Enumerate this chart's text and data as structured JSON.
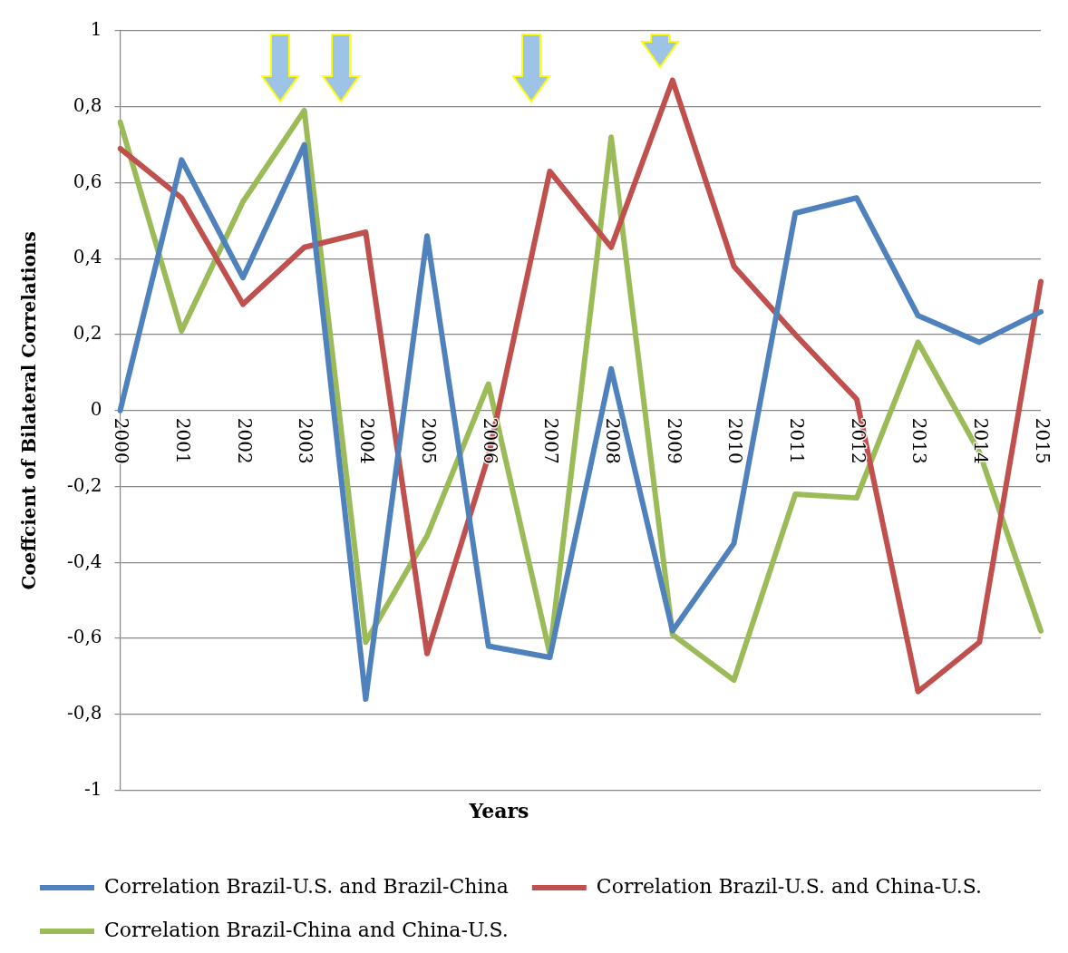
{
  "chart_data": {
    "type": "line",
    "xlabel": "Years",
    "ylabel": "Coeffcient of Bilateral Correlations",
    "categories": [
      "2000",
      "2001",
      "2002",
      "2003",
      "2004",
      "2005",
      "2006",
      "2007",
      "2008",
      "2009",
      "2010",
      "2011",
      "2012",
      "2013",
      "2014",
      "2015"
    ],
    "series": [
      {
        "name": "Correlation Brazil-U.S. and Brazil-China",
        "color": "#4f81bd",
        "values": [
          0,
          0.66,
          0.35,
          0.7,
          -0.76,
          0.46,
          -0.62,
          -0.65,
          0.11,
          -0.58,
          -0.35,
          0.52,
          0.56,
          0.25,
          0.18,
          0.26
        ]
      },
      {
        "name": "Correlation Brazil-U.S. and China-U.S.",
        "color": "#c0504d",
        "values": [
          0.69,
          0.56,
          0.28,
          0.43,
          0.47,
          -0.64,
          -0.12,
          0.63,
          0.43,
          0.87,
          0.38,
          0.2,
          0.03,
          -0.74,
          -0.61,
          0.34
        ]
      },
      {
        "name": "Correlation Brazil-China and China-U.S.",
        "color": "#9bbb59",
        "values": [
          0.76,
          0.21,
          0.55,
          0.79,
          -0.61,
          -0.33,
          0.07,
          -0.64,
          0.72,
          -0.59,
          -0.71,
          -0.22,
          -0.23,
          0.18,
          -0.11,
          -0.58
        ]
      }
    ],
    "ylim": [
      -1,
      1
    ],
    "yticks": [
      {
        "value": -1,
        "label": "-1"
      },
      {
        "value": -0.8,
        "label": "-0,8"
      },
      {
        "value": -0.6,
        "label": "-0,6"
      },
      {
        "value": -0.4,
        "label": "-0,4"
      },
      {
        "value": -0.2,
        "label": "-0,2"
      },
      {
        "value": 0,
        "label": "0"
      },
      {
        "value": 0.2,
        "label": "0,2"
      },
      {
        "value": 0.4,
        "label": "0,4"
      },
      {
        "value": 0.6,
        "label": "0,6"
      },
      {
        "value": 0.8,
        "label": "0,8"
      },
      {
        "value": 1,
        "label": "1"
      }
    ],
    "grid": "y",
    "legend": "bottom",
    "marker": "none",
    "line_style": "solid"
  }
}
